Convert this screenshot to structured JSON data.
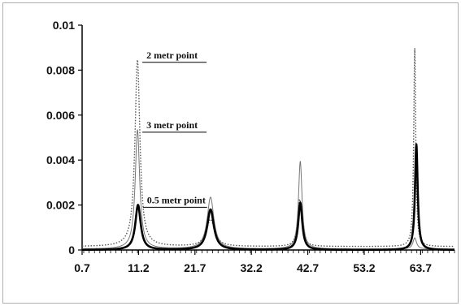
{
  "chart_data": {
    "type": "line",
    "title": "",
    "xlabel": "",
    "ylabel": "",
    "x_ticks": [
      "0.7",
      "11.2",
      "21.7",
      "32.2",
      "42.7",
      "53.2",
      "63.7"
    ],
    "y_ticks": [
      "0",
      "0.002",
      "0.004",
      "0.006",
      "0.008",
      "0.01"
    ],
    "xlim": [
      0.7,
      70.0
    ],
    "ylim": [
      0,
      0.01
    ],
    "grid": false,
    "legend": "none",
    "annotations": [
      {
        "text": "2 metr point",
        "series": 0
      },
      {
        "text": "3 metr point",
        "series": 1
      },
      {
        "text": "0.5 metr point",
        "series": 2
      }
    ],
    "series": [
      {
        "style": "dotted",
        "color": "#555555",
        "baseline": 0.00015,
        "peaks": [
          [
            11.0,
            0.0083,
            0.55
          ],
          [
            24.6,
            0.0012,
            0.9
          ],
          [
            41.2,
            0.0021,
            0.45
          ],
          [
            62.6,
            0.0088,
            0.22
          ]
        ]
      },
      {
        "style": "thin",
        "color": "#777777",
        "baseline": 4e-05,
        "peaks": [
          [
            11.0,
            0.0053,
            0.5
          ],
          [
            24.6,
            0.0023,
            0.75
          ],
          [
            41.3,
            0.0039,
            0.4
          ],
          [
            62.6,
            0.0005,
            0.4
          ]
        ]
      },
      {
        "style": "thick",
        "color": "#000000",
        "baseline": 0.0,
        "peaks": [
          [
            11.1,
            0.002,
            0.6
          ],
          [
            24.6,
            0.0018,
            0.75
          ],
          [
            41.3,
            0.0021,
            0.45
          ],
          [
            62.9,
            0.0047,
            0.3
          ]
        ]
      }
    ]
  }
}
